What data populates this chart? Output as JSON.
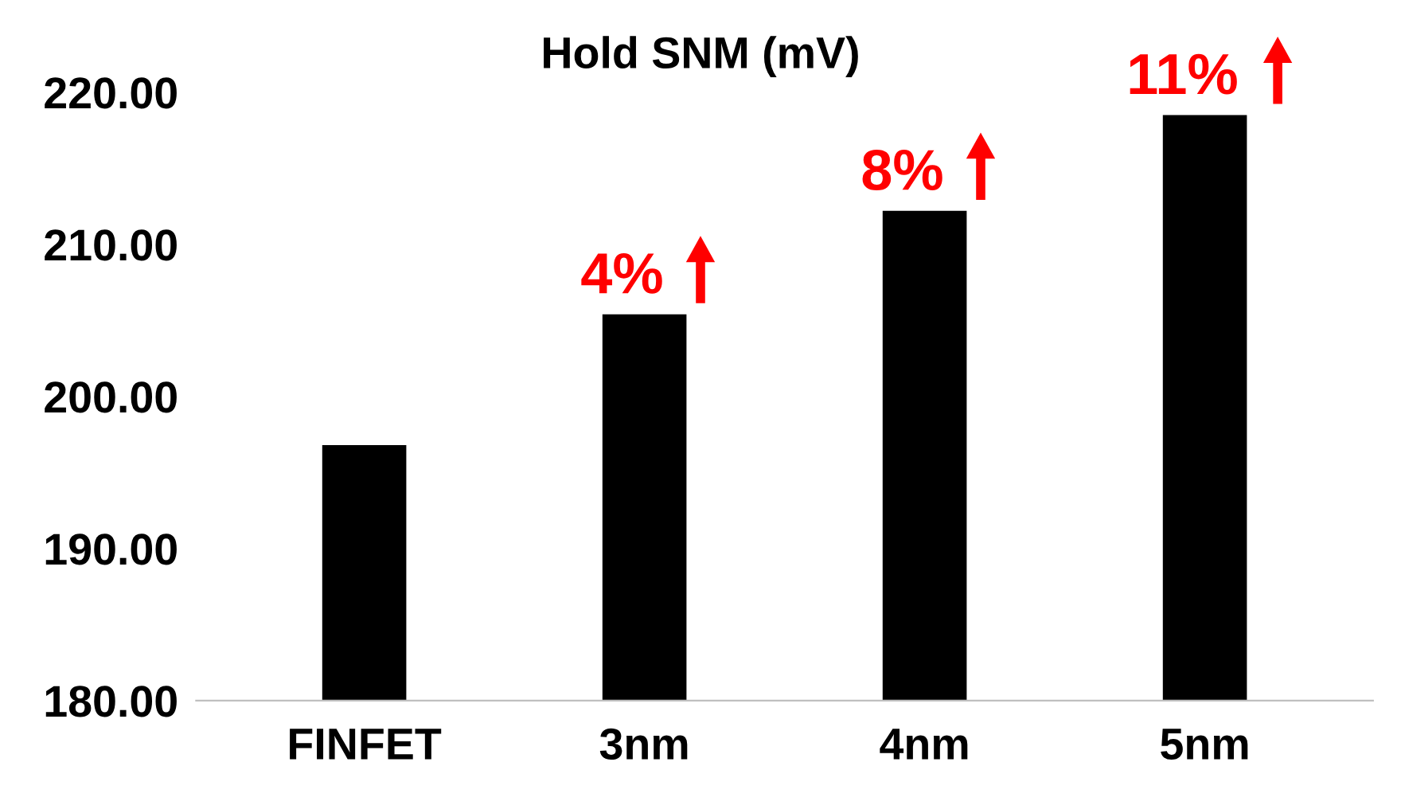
{
  "chart_data": {
    "type": "bar",
    "title": "Hold SNM (mV)",
    "categories": [
      "FINFET",
      "3nm",
      "4nm",
      "5nm"
    ],
    "values": [
      196.8,
      205.4,
      212.2,
      218.5
    ],
    "color": "#000000",
    "ylim": [
      180,
      220
    ],
    "yticks": [
      {
        "value": 180,
        "label": "180.00"
      },
      {
        "value": 190,
        "label": "190.00"
      },
      {
        "value": 200,
        "label": "200.00"
      },
      {
        "value": 210,
        "label": "210.00"
      },
      {
        "value": 220,
        "label": "220.00"
      }
    ],
    "grid": false,
    "legend": false,
    "annotations": [
      {
        "text": "4%",
        "x": "3nm",
        "y": 205.4
      },
      {
        "text": "8%",
        "x": "4nm",
        "y": 212.2
      },
      {
        "text": "11%",
        "x": "5nm",
        "y": 218.5
      }
    ]
  }
}
